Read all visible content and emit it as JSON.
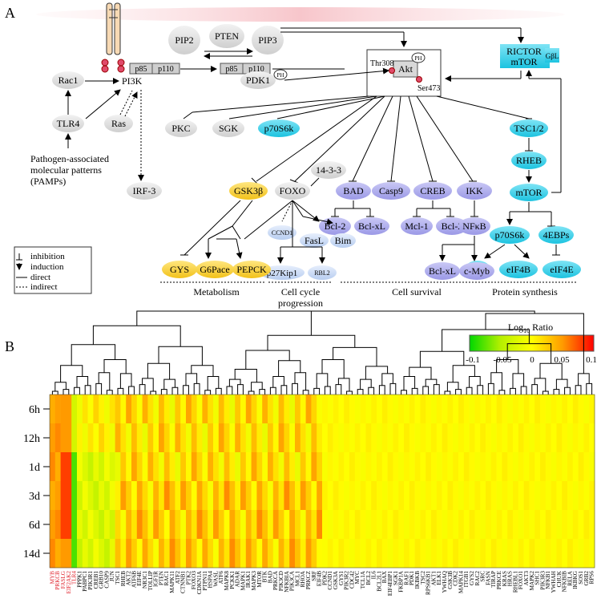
{
  "panels": {
    "a": "A",
    "b": "B"
  },
  "pathway": {
    "pip2": "PIP2",
    "pten": "PTEN",
    "pip3": "PIP3",
    "pdk1": "PDK1",
    "ph": "PH",
    "p85": "p85",
    "p110": "p110",
    "pi3k": "PI3K",
    "rac1": "Rac1",
    "tlr4": "TLR4",
    "ras": "Ras",
    "irf3": "IRF-3",
    "pamps": [
      "Pathogen-associated",
      "molecular patterns",
      "(PAMPs)"
    ],
    "p": "P",
    "akt": "Akt",
    "thr308": "Thr308",
    "ser473": "Ser473",
    "rictor": "RICTOR",
    "mtor_complex": "mTOR",
    "gbl": "GβL",
    "pkc": "PKC",
    "sgk": "SGK",
    "p70s6k_top": "p70S6k",
    "tsc": "TSC1/2",
    "rheb": "RHEB",
    "mtor": "mTOR",
    "p70s6k": "p70S6k",
    "ebps": "4EBPs",
    "s6": "S6",
    "eif4b": "eIF4B",
    "eif4e": "eIF4E",
    "gsk3b": "GSK3β",
    "foxo": "FOXO",
    "f1433": "14-3-3",
    "bad": "BAD",
    "casp9": "Casp9",
    "creb": "CREB",
    "ikk": "IKK",
    "bcl2a": "Bcl-2",
    "bclxla": "Bcl-xL",
    "mcl1": "Mcl-1",
    "bcl2b": "Bcl-2",
    "nfkb": "NFκB",
    "bclxlb": "Bcl-xL",
    "cmyb": "c-Myb",
    "ccnd1": "CCND1",
    "fasl": "FasL",
    "bim": "Bim",
    "p27": "p27Kip1",
    "rbl2": "RBL2",
    "gys": "GYS",
    "g6pace": "G6Pace",
    "pepck": "PEPCK",
    "cat_metabolism": "Metabolism",
    "cat_cellcycle": [
      "Cell cycle",
      "progression"
    ],
    "cat_survival": "Cell survival",
    "cat_protein": "Protein synthesis",
    "legend": [
      "inhibition",
      "induction",
      "direct",
      "indirect"
    ]
  },
  "heatmap": {
    "legend_title": "Log",
    "legend_sub": "10",
    "legend_title2": " Ratio",
    "ticks": [
      "-0.1",
      "-0.05",
      "0",
      "0.05",
      "0.1"
    ],
    "rows": [
      "6h",
      "12h",
      "1d",
      "3d",
      "6d",
      "14d"
    ],
    "genes": [
      "MYB",
      "PRKCB",
      "FASLG",
      "EIF2AK2",
      "TLR4",
      "PPPK1",
      "PABPC1",
      "PIK3R1",
      "CREB1",
      "GRB10",
      "CASP9",
      "JUN",
      "TSC1",
      "RHEB",
      "AKT2",
      "ATF6B",
      "EIF4E",
      "NR3C1",
      "TOLLIP",
      "IGF1R",
      "PTEN",
      "RAC1",
      "MAPK11",
      "ATF2",
      "CTNNB1",
      "PTK2",
      "FOXO3",
      "CDKN1A",
      "PTPN11",
      "HSPA4",
      "WASL",
      "ATF6",
      "MAPK8",
      "PCKK1",
      "ADAR",
      "MAPK1",
      "IRAK1",
      "MAPK3",
      "MTOR",
      "BTK",
      "BAD",
      "PRKCA",
      "PIK3CD",
      "NFKBIA",
      "PIK3CA",
      "MCL1",
      "RHOA",
      "PRKCZ",
      "SRF",
      "EIF4B",
      "PDK2",
      "CCND1",
      "GSK3A",
      "GYS1",
      "PIK3R2",
      "CDC42",
      "MYC",
      "TCL1A",
      "BCL2",
      "IL6",
      "BCL2L1",
      "BAX",
      "EIF4EBP1",
      "SGK1",
      "FKBP1A",
      "RAF1",
      "PDK1",
      "IKBKB",
      "TSC2",
      "RPS6KB1",
      "AKT1",
      "ELK1",
      "YWHAQ",
      "GSK3B",
      "CDK2",
      "MAPK14",
      "ITGB1",
      "GYS2",
      "RAC2",
      "SRC",
      "FASN",
      "TIRAP",
      "PRKCE",
      "KRAS",
      "HRAS",
      "RHEBL1",
      "FOXO1",
      "AKT3",
      "MAPK2",
      "SHC1",
      "PIK3R3",
      "NFKB1",
      "YWHAH",
      "CHUK",
      "NFKBIB",
      "RELA",
      "IKBKG",
      "SOS1",
      "GRB2",
      "RPS6"
    ],
    "red_genes": [
      0,
      1,
      2,
      3,
      4
    ]
  }
}
